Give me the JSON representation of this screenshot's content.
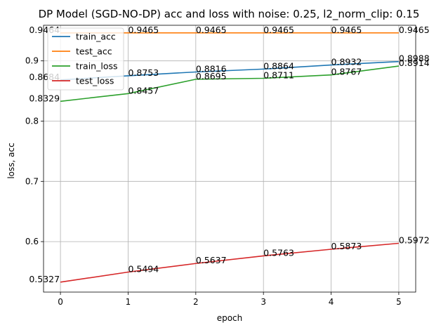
{
  "chart_data": {
    "type": "line",
    "title": "DP Model (SGD-NO-DP) acc and loss with noise: 0.25, l2_norm_clip: 0.15",
    "xlabel": "epoch",
    "ylabel": "loss, acc",
    "x": [
      0,
      1,
      2,
      3,
      4,
      5
    ],
    "xlim": [
      -0.25,
      5.25
    ],
    "ylim": [
      0.5162,
      0.9591
    ],
    "xticks": [
      "0",
      "1",
      "2",
      "3",
      "4",
      "5"
    ],
    "yticks": [
      "0.6",
      "0.7",
      "0.8",
      "0.9"
    ],
    "ytick_values": [
      0.6,
      0.7,
      0.8,
      0.9
    ],
    "grid": true,
    "legend_position": "top-left",
    "series": [
      {
        "name": "train_acc",
        "color": "#1f77b4",
        "values": [
          0.8684,
          0.8753,
          0.8816,
          0.8864,
          0.8932,
          0.8988
        ],
        "labels": [
          "0.8684",
          "0.8753",
          "0.8816",
          "0.8864",
          "0.8932",
          "0.8988"
        ]
      },
      {
        "name": "test_acc",
        "color": "#ff7f0e",
        "values": [
          0.9464,
          0.9465,
          0.9465,
          0.9465,
          0.9465,
          0.9465
        ],
        "labels": [
          "0.9464",
          "0.9465",
          "0.9465",
          "0.9465",
          "0.9465",
          "0.9465"
        ]
      },
      {
        "name": "train_loss",
        "color": "#2ca02c",
        "values": [
          0.8329,
          0.8457,
          0.8695,
          0.8711,
          0.8767,
          0.8914
        ],
        "labels": [
          "0.8329",
          "0.8457",
          "0.8695",
          "0.8711",
          "0.8767",
          "0.8914"
        ]
      },
      {
        "name": "test_loss",
        "color": "#d62728",
        "values": [
          0.5327,
          0.5494,
          0.5637,
          0.5763,
          0.5873,
          0.5972
        ],
        "labels": [
          "0.5327",
          "0.5494",
          "0.5637",
          "0.5763",
          "0.5873",
          "0.5972"
        ]
      }
    ]
  }
}
